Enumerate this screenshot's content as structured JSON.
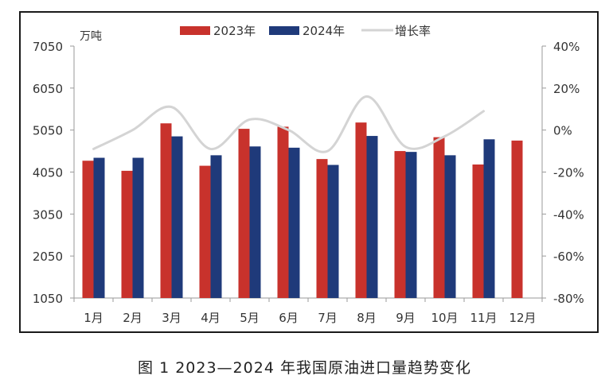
{
  "caption": "图 1  2023—2024 年我国原油进口量趋势变化",
  "chart_data": {
    "type": "bar",
    "unit_label": "万吨",
    "categories": [
      "1月",
      "2月",
      "3月",
      "4月",
      "5月",
      "6月",
      "7月",
      "8月",
      "9月",
      "10月",
      "11月",
      "12月"
    ],
    "series": [
      {
        "name": "2023年",
        "kind": "bar",
        "axis": "left",
        "color": "#c8322c",
        "values": [
          4320,
          4080,
          5210,
          4200,
          5080,
          5130,
          4360,
          5230,
          4550,
          4880,
          4230,
          4800
        ]
      },
      {
        "name": "2024年",
        "kind": "bar",
        "axis": "left",
        "color": "#1f3a7a",
        "values": [
          4390,
          4390,
          4900,
          4450,
          4660,
          4630,
          4220,
          4910,
          4530,
          4450,
          4830,
          null
        ]
      },
      {
        "name": "增长率",
        "kind": "line",
        "axis": "right",
        "color": "#d4d4d4",
        "values": [
          -0.09,
          0.0,
          0.11,
          -0.09,
          0.05,
          0.0,
          -0.1,
          0.16,
          -0.08,
          -0.03,
          0.09,
          null
        ]
      }
    ],
    "y_left": {
      "min": 1050,
      "max": 7050,
      "ticks": [
        1050,
        2050,
        3050,
        4050,
        5050,
        6050,
        7050
      ]
    },
    "y_right": {
      "min": -0.8,
      "max": 0.4,
      "ticks": [
        -0.8,
        -0.6,
        -0.4,
        -0.2,
        0,
        0.2,
        0.4
      ],
      "tick_labels": [
        "-80%",
        "-60%",
        "-40%",
        "-20%",
        "0%",
        "20%",
        "40%"
      ]
    },
    "grid": false,
    "legend_position": "top-center"
  }
}
